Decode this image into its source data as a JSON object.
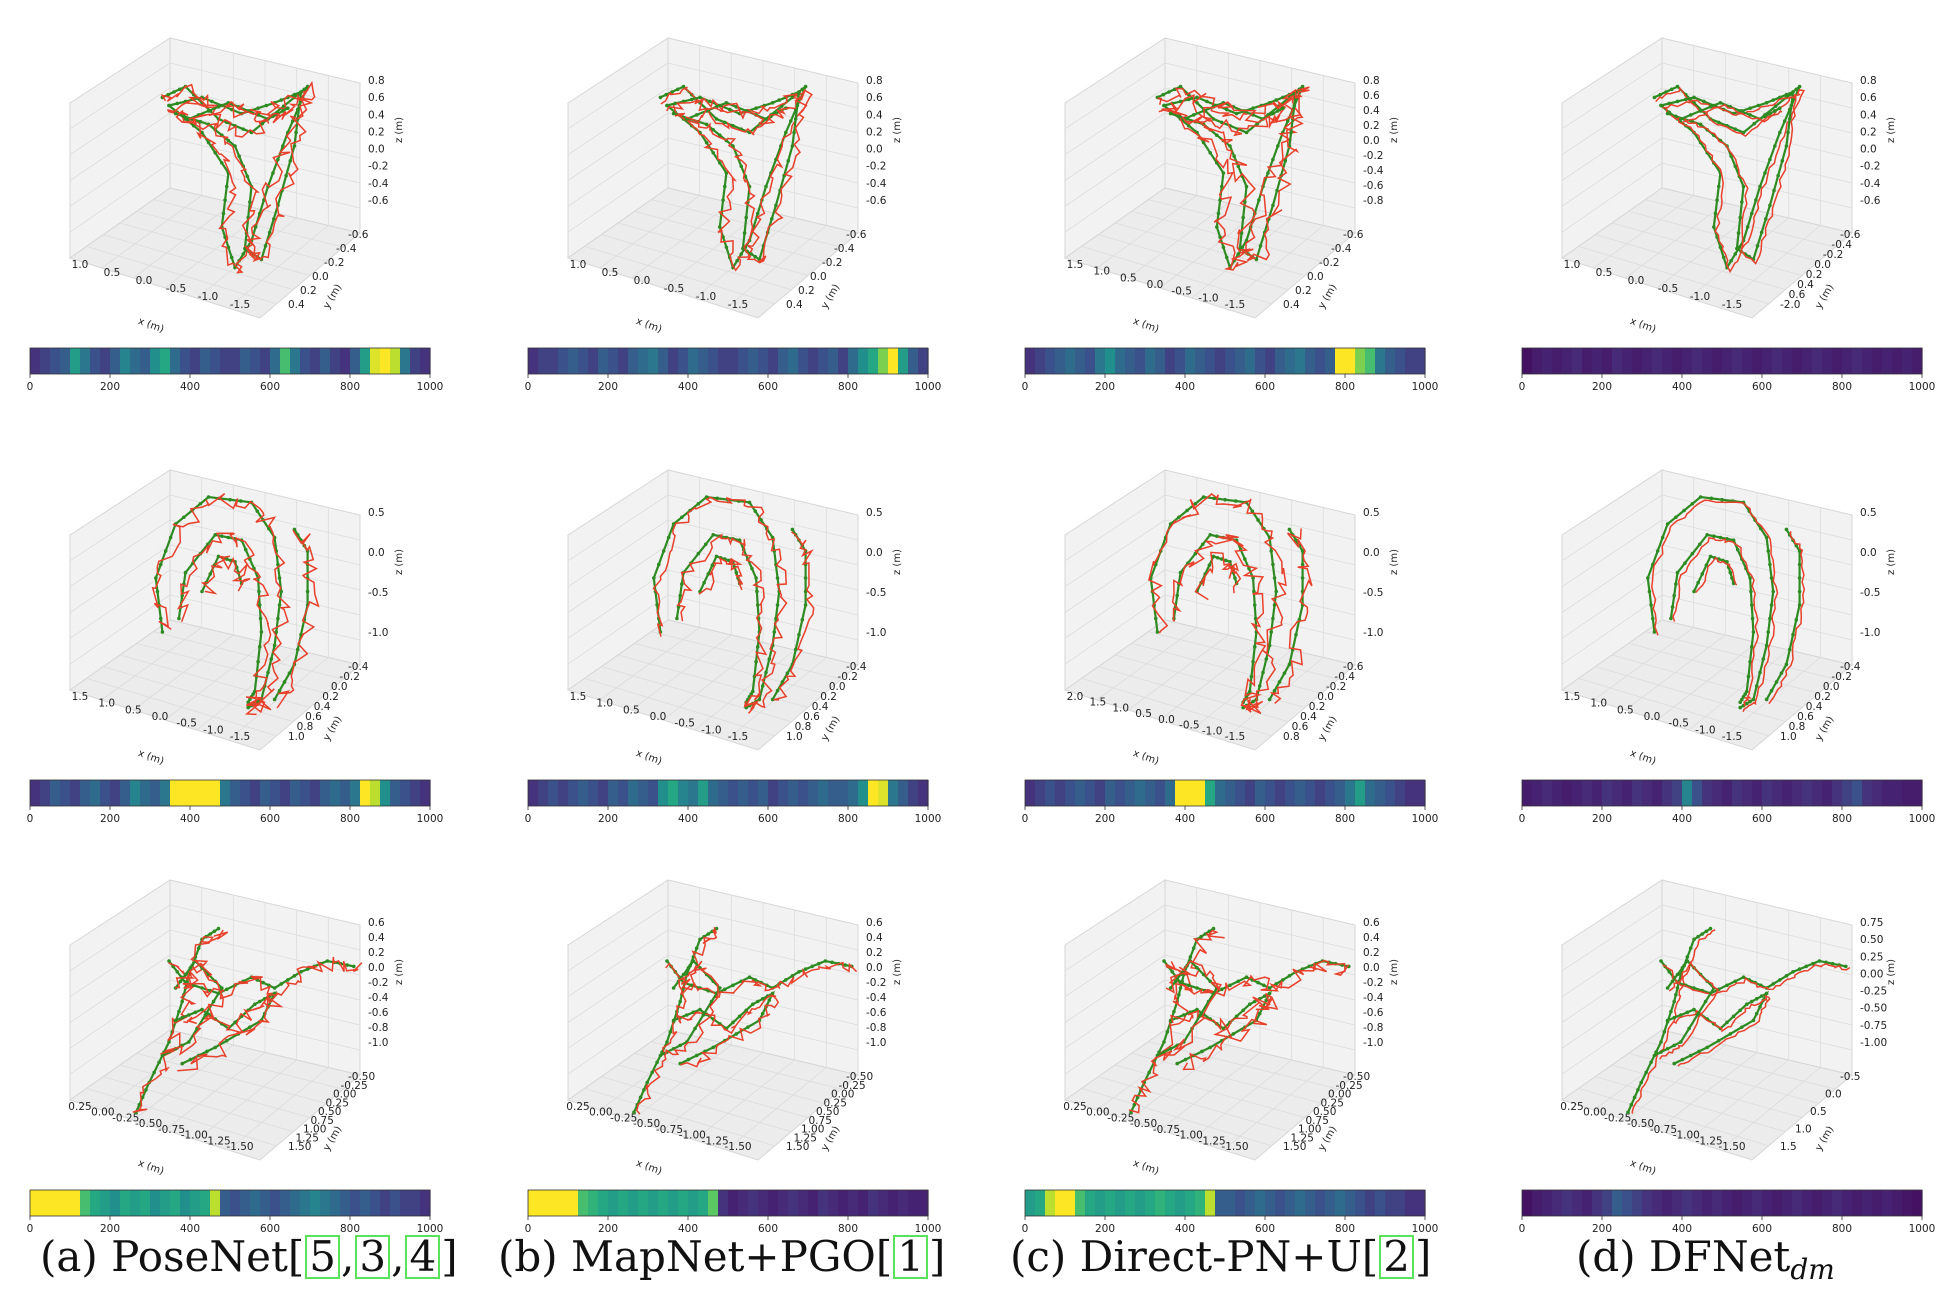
{
  "chart_data": {
    "type": "grid-3d-trajectory-heatbar",
    "legend": [],
    "columns": [
      {
        "id": "a",
        "label_parts": [
          "(a) PoseNet",
          "[",
          "5",
          ",",
          "3",
          ",",
          "4",
          "]"
        ]
      },
      {
        "id": "b",
        "label_parts": [
          "(b) MapNet+PGO",
          "[",
          "1",
          "]"
        ]
      },
      {
        "id": "c",
        "label_parts": [
          "(c) Direct-PN+U",
          "[",
          "2",
          "]"
        ]
      },
      {
        "id": "d",
        "label_parts": [
          "(d) DFNet",
          "dm"
        ]
      }
    ],
    "axis_labels": {
      "x": "x (m)",
      "y": "y (m)",
      "z": "z (m)"
    },
    "colorbar": {
      "range": [
        0,
        1000
      ],
      "ticks": [
        "0",
        "200",
        "400",
        "600",
        "800",
        "1000"
      ],
      "colormap": "viridis"
    },
    "series_colors": {
      "ground_truth": "#2e8b22",
      "prediction": "#e8402a"
    },
    "rows": [
      {
        "z_ticks": {
          "a": [
            "0.8",
            "0.6",
            "0.4",
            "0.2",
            "0.0",
            "-0.2",
            "-0.4",
            "-0.6"
          ],
          "b": [
            "0.8",
            "0.6",
            "0.4",
            "0.2",
            "0.0",
            "-0.2",
            "-0.4",
            "-0.6"
          ],
          "c": [
            "0.8",
            "0.6",
            "0.4",
            "0.2",
            "0.0",
            "-0.2",
            "-0.4",
            "-0.6",
            "-0.8"
          ],
          "d": [
            "0.8",
            "0.6",
            "0.4",
            "0.2",
            "0.0",
            "-0.2",
            "-0.4",
            "-0.6"
          ]
        },
        "x_ticks": {
          "a": [
            "1.0",
            "0.5",
            "0.0",
            "-0.5",
            "-1.0",
            "-1.5"
          ],
          "b": [
            "1.0",
            "0.5",
            "0.0",
            "-0.5",
            "-1.0",
            "-1.5"
          ],
          "c": [
            "1.5",
            "1.0",
            "0.5",
            "0.0",
            "-0.5",
            "-1.0",
            "-1.5"
          ],
          "d": [
            "1.0",
            "0.5",
            "0.0",
            "-0.5",
            "-1.0",
            "-1.5"
          ]
        },
        "y_ticks": {
          "a": [
            "-0.6",
            "-0.4",
            "-0.2",
            "0.0",
            "0.2",
            "0.4"
          ],
          "b": [
            "-0.6",
            "-0.4",
            "-0.2",
            "0.0",
            "0.2",
            "0.4"
          ],
          "c": [
            "-0.6",
            "-0.4",
            "-0.2",
            "0.0",
            "0.2",
            "0.4"
          ],
          "d": [
            "-0.6",
            "-0.4",
            "-0.2",
            "0.0",
            "0.2",
            "0.4",
            "0.6",
            "-2.0"
          ]
        },
        "shape": "heart",
        "errors": {
          "a": [
            0.15,
            0.2,
            0.25,
            0.3,
            0.55,
            0.4,
            0.25,
            0.2,
            0.3,
            0.45,
            0.35,
            0.3,
            0.5,
            0.6,
            0.35,
            0.25,
            0.2,
            0.3,
            0.25,
            0.2,
            0.2,
            0.3,
            0.25,
            0.2,
            0.35,
            0.7,
            0.4,
            0.25,
            0.2,
            0.3,
            0.2,
            0.15,
            0.3,
            0.55,
            0.95,
            1.0,
            0.9,
            0.4,
            0.2,
            0.15
          ],
          "b": [
            0.15,
            0.2,
            0.2,
            0.25,
            0.3,
            0.25,
            0.2,
            0.3,
            0.25,
            0.2,
            0.3,
            0.35,
            0.4,
            0.3,
            0.2,
            0.25,
            0.35,
            0.3,
            0.25,
            0.2,
            0.2,
            0.25,
            0.3,
            0.25,
            0.2,
            0.3,
            0.35,
            0.25,
            0.2,
            0.25,
            0.3,
            0.2,
            0.35,
            0.5,
            0.6,
            0.8,
            1.0,
            0.55,
            0.3,
            0.2
          ],
          "c": [
            0.15,
            0.2,
            0.25,
            0.3,
            0.35,
            0.3,
            0.25,
            0.4,
            0.5,
            0.35,
            0.3,
            0.25,
            0.35,
            0.3,
            0.2,
            0.25,
            0.35,
            0.3,
            0.25,
            0.2,
            0.25,
            0.3,
            0.35,
            0.25,
            0.2,
            0.3,
            0.35,
            0.4,
            0.3,
            0.25,
            0.3,
            1.0,
            1.0,
            0.8,
            0.7,
            0.4,
            0.3,
            0.25,
            0.2,
            0.2
          ],
          "d": [
            0.05,
            0.08,
            0.1,
            0.08,
            0.1,
            0.12,
            0.08,
            0.1,
            0.08,
            0.12,
            0.1,
            0.08,
            0.1,
            0.12,
            0.1,
            0.08,
            0.1,
            0.12,
            0.1,
            0.08,
            0.1,
            0.12,
            0.1,
            0.08,
            0.1,
            0.12,
            0.1,
            0.08,
            0.1,
            0.12,
            0.1,
            0.08,
            0.1,
            0.12,
            0.1,
            0.08,
            0.1,
            0.08,
            0.1,
            0.08
          ]
        }
      },
      {
        "z_ticks": {
          "a": [
            "0.5",
            "0.0",
            "-0.5",
            "-1.0"
          ],
          "b": [
            "0.5",
            "0.0",
            "-0.5",
            "-1.0"
          ],
          "c": [
            "0.5",
            "0.0",
            "-0.5",
            "-1.0"
          ],
          "d": [
            "0.5",
            "0.0",
            "-0.5",
            "-1.0"
          ]
        },
        "x_ticks": {
          "a": [
            "1.5",
            "1.0",
            "0.5",
            "0.0",
            "-0.5",
            "-1.0",
            "-1.5"
          ],
          "b": [
            "1.5",
            "1.0",
            "0.5",
            "0.0",
            "-0.5",
            "-1.0",
            "-1.5"
          ],
          "c": [
            "2.0",
            "1.5",
            "1.0",
            "0.5",
            "0.0",
            "-0.5",
            "-1.0",
            "-1.5"
          ],
          "d": [
            "1.5",
            "1.0",
            "0.5",
            "0.0",
            "-0.5",
            "-1.0",
            "-1.5"
          ]
        },
        "y_ticks": {
          "a": [
            "-0.4",
            "-0.2",
            "0.0",
            "0.2",
            "0.4",
            "0.6",
            "0.8",
            "1.0"
          ],
          "b": [
            "-0.4",
            "-0.2",
            "0.0",
            "0.2",
            "0.4",
            "0.6",
            "0.8",
            "1.0"
          ],
          "c": [
            "-0.6",
            "-0.4",
            "-0.2",
            "0.0",
            "0.2",
            "0.4",
            "0.6",
            "0.8"
          ],
          "d": [
            "-0.4",
            "-0.2",
            "0.0",
            "0.2",
            "0.4",
            "0.6",
            "0.8",
            "1.0"
          ]
        },
        "shape": "arch",
        "errors": {
          "a": [
            0.15,
            0.2,
            0.3,
            0.25,
            0.2,
            0.3,
            0.35,
            0.25,
            0.2,
            0.3,
            0.45,
            0.35,
            0.3,
            0.4,
            1.0,
            1.0,
            1.0,
            1.0,
            1.0,
            0.4,
            0.3,
            0.25,
            0.2,
            0.3,
            0.25,
            0.2,
            0.3,
            0.25,
            0.2,
            0.3,
            0.35,
            0.3,
            0.4,
            1.0,
            0.9,
            0.5,
            0.3,
            0.25,
            0.2,
            0.15
          ],
          "b": [
            0.15,
            0.2,
            0.25,
            0.2,
            0.25,
            0.3,
            0.25,
            0.2,
            0.3,
            0.25,
            0.35,
            0.3,
            0.25,
            0.5,
            0.6,
            0.45,
            0.4,
            0.55,
            0.35,
            0.3,
            0.25,
            0.3,
            0.25,
            0.3,
            0.2,
            0.25,
            0.3,
            0.25,
            0.3,
            0.35,
            0.3,
            0.3,
            0.35,
            0.5,
            1.0,
            0.95,
            0.4,
            0.3,
            0.2,
            0.15
          ],
          "c": [
            0.15,
            0.2,
            0.25,
            0.2,
            0.25,
            0.3,
            0.25,
            0.2,
            0.3,
            0.25,
            0.3,
            0.35,
            0.3,
            0.25,
            0.35,
            1.0,
            1.0,
            1.0,
            0.6,
            0.35,
            0.3,
            0.25,
            0.2,
            0.3,
            0.25,
            0.2,
            0.25,
            0.3,
            0.25,
            0.2,
            0.25,
            0.3,
            0.4,
            0.55,
            0.35,
            0.3,
            0.25,
            0.2,
            0.15,
            0.15
          ],
          "d": [
            0.08,
            0.1,
            0.12,
            0.1,
            0.08,
            0.1,
            0.12,
            0.1,
            0.15,
            0.12,
            0.1,
            0.15,
            0.12,
            0.1,
            0.15,
            0.2,
            0.45,
            0.25,
            0.15,
            0.12,
            0.1,
            0.15,
            0.12,
            0.1,
            0.15,
            0.12,
            0.1,
            0.12,
            0.15,
            0.12,
            0.1,
            0.15,
            0.2,
            0.25,
            0.15,
            0.12,
            0.1,
            0.1,
            0.08,
            0.08
          ]
        }
      },
      {
        "z_ticks": {
          "a": [
            "0.6",
            "0.4",
            "0.2",
            "0.0",
            "-0.2",
            "-0.4",
            "-0.6",
            "-0.8",
            "-1.0"
          ],
          "b": [
            "0.6",
            "0.4",
            "0.2",
            "0.0",
            "-0.2",
            "-0.4",
            "-0.6",
            "-0.8",
            "-1.0"
          ],
          "c": [
            "0.6",
            "0.4",
            "0.2",
            "0.0",
            "-0.2",
            "-0.4",
            "-0.6",
            "-0.8",
            "-1.0"
          ],
          "d": [
            "0.75",
            "0.50",
            "0.25",
            "0.00",
            "-0.25",
            "-0.50",
            "-0.75",
            "-1.00"
          ]
        },
        "x_ticks": {
          "a": [
            "0.25",
            "0.00",
            "-0.25",
            "-0.50",
            "-0.75",
            "-1.00",
            "-1.25",
            "-1.50"
          ],
          "b": [
            "0.25",
            "0.00",
            "-0.25",
            "-0.50",
            "-0.75",
            "-1.00",
            "-1.25",
            "-1.50"
          ],
          "c": [
            "0.25",
            "0.00",
            "-0.25",
            "-0.50",
            "-0.75",
            "-1.00",
            "-1.25",
            "-1.50"
          ],
          "d": [
            "0.25",
            "0.00",
            "-0.25",
            "-0.50",
            "-0.75",
            "-1.00",
            "-1.25",
            "-1.50"
          ]
        },
        "y_ticks": {
          "a": [
            "-0.50",
            "-0.25",
            "0.00",
            "0.25",
            "0.50",
            "0.75",
            "1.00",
            "1.25",
            "1.50"
          ],
          "b": [
            "-0.50",
            "-0.25",
            "0.00",
            "0.25",
            "0.50",
            "0.75",
            "1.00",
            "1.25",
            "1.50"
          ],
          "c": [
            "-0.50",
            "-0.25",
            "0.00",
            "0.25",
            "0.50",
            "0.75",
            "1.00",
            "1.25",
            "1.50"
          ],
          "d": [
            "-0.5",
            "0.0",
            "0.5",
            "1.0",
            "1.5"
          ]
        },
        "shape": "scribble",
        "errors": {
          "a": [
            1.0,
            1.0,
            1.0,
            1.0,
            1.0,
            0.7,
            0.6,
            0.55,
            0.5,
            0.6,
            0.55,
            0.6,
            0.5,
            0.55,
            0.6,
            0.5,
            0.55,
            0.6,
            0.9,
            0.3,
            0.25,
            0.3,
            0.35,
            0.3,
            0.25,
            0.3,
            0.35,
            0.4,
            0.45,
            0.4,
            0.35,
            0.3,
            0.25,
            0.3,
            0.25,
            0.2,
            0.25,
            0.2,
            0.2,
            0.15
          ],
          "b": [
            1.0,
            1.0,
            1.0,
            1.0,
            1.0,
            0.7,
            0.65,
            0.6,
            0.55,
            0.6,
            0.55,
            0.6,
            0.55,
            0.6,
            0.55,
            0.6,
            0.55,
            0.6,
            0.75,
            0.15,
            0.1,
            0.12,
            0.15,
            0.12,
            0.1,
            0.12,
            0.15,
            0.12,
            0.1,
            0.15,
            0.12,
            0.1,
            0.12,
            0.1,
            0.15,
            0.12,
            0.1,
            0.12,
            0.1,
            0.1
          ],
          "c": [
            0.55,
            0.6,
            0.9,
            1.0,
            1.0,
            0.7,
            0.6,
            0.55,
            0.6,
            0.55,
            0.6,
            0.55,
            0.6,
            0.65,
            0.6,
            0.55,
            0.6,
            0.65,
            0.9,
            0.3,
            0.3,
            0.25,
            0.3,
            0.35,
            0.3,
            0.25,
            0.3,
            0.35,
            0.3,
            0.25,
            0.3,
            0.35,
            0.3,
            0.25,
            0.2,
            0.25,
            0.2,
            0.2,
            0.15,
            0.15
          ],
          "d": [
            0.05,
            0.08,
            0.1,
            0.12,
            0.15,
            0.12,
            0.1,
            0.15,
            0.2,
            0.3,
            0.25,
            0.2,
            0.15,
            0.12,
            0.1,
            0.12,
            0.15,
            0.12,
            0.1,
            0.12,
            0.1,
            0.08,
            0.1,
            0.12,
            0.1,
            0.08,
            0.1,
            0.12,
            0.1,
            0.08,
            0.1,
            0.12,
            0.1,
            0.08,
            0.1,
            0.08,
            0.1,
            0.08,
            0.06,
            0.05
          ]
        }
      }
    ]
  }
}
